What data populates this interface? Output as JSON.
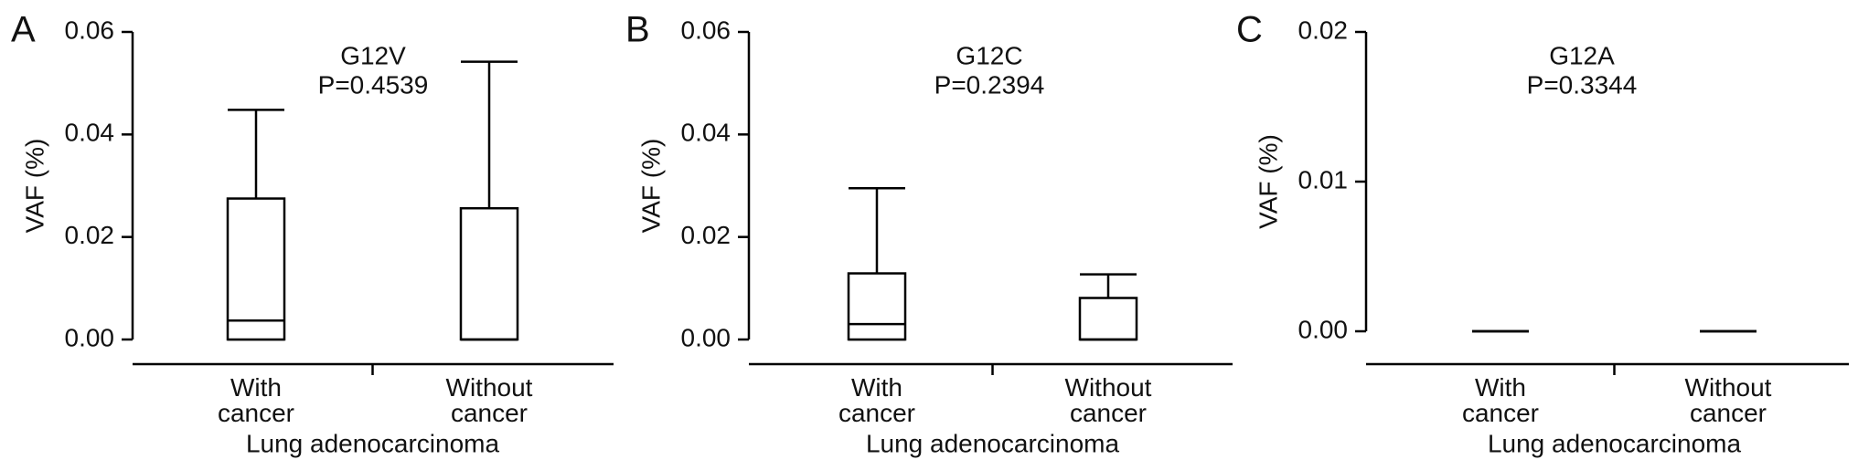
{
  "chart_data": [
    {
      "type": "box",
      "panel": "A",
      "title": "G12V",
      "subtitle": "P=0.4539",
      "ylabel": "VAF (%)",
      "xlabel": "Lung adenocarcinoma",
      "categories": [
        "With\ncancer",
        "Without\ncancer"
      ],
      "min": [
        0,
        0
      ],
      "q1": [
        0,
        0
      ],
      "median": [
        0.0037,
        0
      ],
      "q3": [
        0.0275,
        0.0256
      ],
      "max": [
        0.0448,
        0.0542
      ],
      "ylim": [
        0,
        0.06
      ],
      "yticks": [
        {
          "value": 0,
          "label": "0.00"
        },
        {
          "value": 0.02,
          "label": "0.02"
        },
        {
          "value": 0.04,
          "label": "0.04"
        },
        {
          "value": 0.06,
          "label": "0.06"
        }
      ],
      "color": "#000000"
    },
    {
      "type": "box",
      "panel": "B",
      "title": "G12C",
      "subtitle": "P=0.2394",
      "ylabel": "VAF (%)",
      "xlabel": "Lung adenocarcinoma",
      "categories": [
        "With\ncancer",
        "Without\ncancer"
      ],
      "min": [
        0,
        0
      ],
      "q1": [
        0,
        0
      ],
      "median": [
        0.003,
        0
      ],
      "q3": [
        0.0129,
        0.0081
      ],
      "max": [
        0.0295,
        0.0127
      ],
      "ylim": [
        0,
        0.06
      ],
      "yticks": [
        {
          "value": 0,
          "label": "0.00"
        },
        {
          "value": 0.02,
          "label": "0.02"
        },
        {
          "value": 0.04,
          "label": "0.04"
        },
        {
          "value": 0.06,
          "label": "0.06"
        }
      ],
      "color": "#000000"
    },
    {
      "type": "box",
      "panel": "C",
      "title": "G12A",
      "subtitle": "P=0.3344",
      "ylabel": "VAF (%)",
      "xlabel": "Lung adenocarcinoma",
      "categories": [
        "With\ncancer",
        "Without\ncancer"
      ],
      "min": [
        0,
        0
      ],
      "q1": [
        0,
        0
      ],
      "median": [
        0,
        0
      ],
      "q3": [
        0,
        0
      ],
      "max": [
        0,
        0
      ],
      "ylim": [
        0,
        0.02
      ],
      "yticks": [
        {
          "value": 0,
          "label": "0.00"
        },
        {
          "value": 0.01,
          "label": "0.01"
        },
        {
          "value": 0.02,
          "label": "0.02"
        }
      ],
      "color": "#000000"
    }
  ]
}
